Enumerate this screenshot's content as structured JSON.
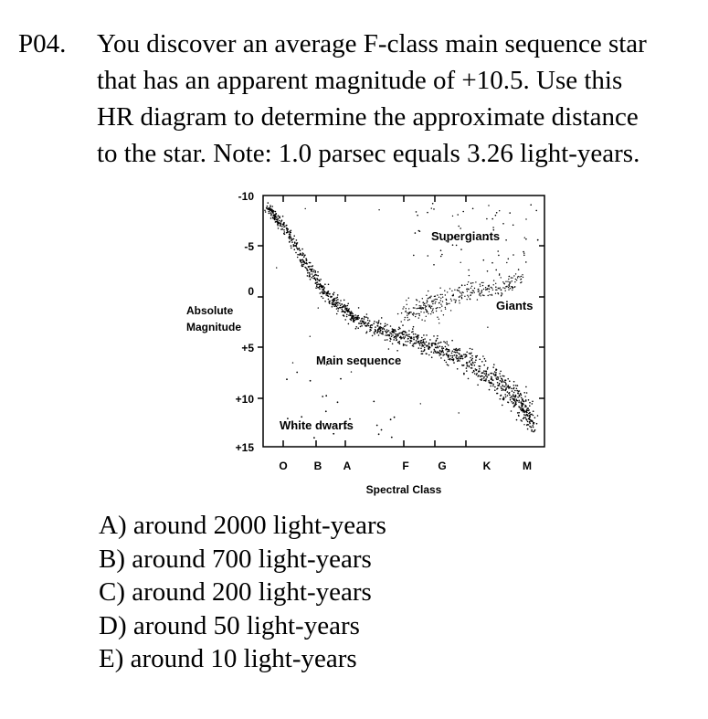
{
  "question": {
    "number": "P04.",
    "lines": [
      "You discover an average F-class main sequence star",
      "that has an apparent magnitude of +10.5.  Use this",
      "HR diagram to determine the approximate distance",
      "to the star. Note: 1.0 parsec equals 3.26 light-years."
    ]
  },
  "diagram": {
    "y_axis_label_line1": "Absolute",
    "y_axis_label_line2": "Magnitude",
    "x_axis_label": "Spectral Class",
    "y_ticks": [
      "-10",
      "-5",
      "0",
      "+5",
      "+10",
      "+15"
    ],
    "x_ticks": [
      "O",
      "B",
      "A",
      "F",
      "G",
      "K",
      "M"
    ],
    "regions": {
      "supergiants": "Supergiants",
      "giants": "Giants",
      "main_sequence": "Main sequence",
      "white_dwarfs": "White dwarfs"
    }
  },
  "choices": [
    "A)  around 2000 light-years",
    "B)  around 700 light-years",
    "C)  around 200 light-years",
    "D)  around 50 light-years",
    "E)  around 10 light-years"
  ]
}
